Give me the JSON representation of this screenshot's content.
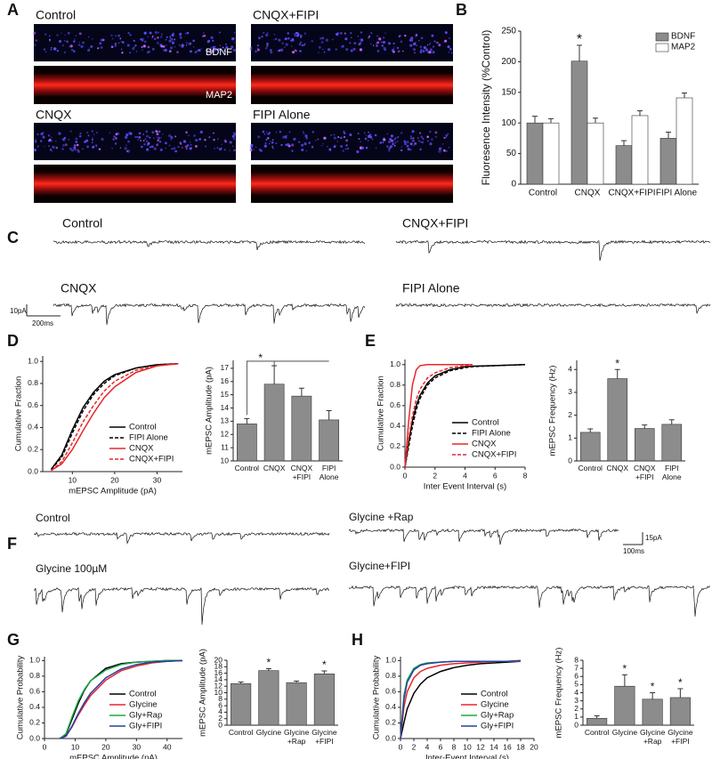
{
  "panels": [
    "A",
    "B",
    "C",
    "D",
    "E",
    "F",
    "G",
    "H"
  ],
  "micrograph_titles": [
    "Control",
    "CNQX+FIPI",
    "CNQX",
    "FIPI Alone"
  ],
  "stain_labels": [
    "BDNF",
    "MAP2"
  ],
  "traces_c": {
    "labels": [
      "Control",
      "CNQX+FIPI",
      "CNQX",
      "FIPI Alone"
    ],
    "scale_y": "10pA",
    "scale_x": "200ms"
  },
  "traces_f": {
    "labels": [
      "Control",
      "Glycine +Rap",
      "Glycine 100µM",
      "Glycine+FIPI"
    ],
    "scale_y": "15pA",
    "scale_x": "100ms"
  },
  "chart_data": [
    {
      "type": "bar",
      "ylabel": "Fluoresence Intensity (%Control)",
      "categories": [
        "Control",
        "CNQX",
        "CNQX+FIPI",
        "FIPI Alone"
      ],
      "series": [
        {
          "name": "BDNF",
          "color": "#8c8c8c",
          "values": [
            100,
            201,
            63,
            75
          ],
          "error": [
            11,
            26,
            8,
            10
          ]
        },
        {
          "name": "MAP2",
          "color": "#ffffff",
          "values": [
            100,
            100,
            112,
            141
          ],
          "error": [
            7,
            8,
            8,
            8
          ]
        }
      ],
      "ylim": [
        0,
        250
      ],
      "yticks": [
        0,
        50,
        100,
        150,
        200,
        250
      ],
      "legend": "upper right",
      "annotations": [
        {
          "text": "*",
          "category": "CNQX"
        }
      ]
    },
    {
      "type": "line",
      "xlabel": "mEPSC Amplitude (pA)",
      "ylabel": "Cumulative Fraction",
      "x": [
        5,
        7.5,
        10,
        12.5,
        15,
        17.5,
        20,
        25,
        30,
        35
      ],
      "series": [
        {
          "name": "Control",
          "color": "#000000",
          "dash": false,
          "values": [
            0.02,
            0.15,
            0.38,
            0.58,
            0.72,
            0.82,
            0.88,
            0.94,
            0.97,
            0.98
          ]
        },
        {
          "name": "FIPI Alone",
          "color": "#000000",
          "dash": true,
          "values": [
            0.02,
            0.13,
            0.35,
            0.55,
            0.7,
            0.8,
            0.87,
            0.94,
            0.97,
            0.98
          ]
        },
        {
          "name": "CNQX",
          "color": "#e8262b",
          "dash": false,
          "values": [
            0.01,
            0.07,
            0.2,
            0.37,
            0.53,
            0.67,
            0.77,
            0.9,
            0.96,
            0.98
          ]
        },
        {
          "name": "CNQX+FIPI",
          "color": "#e8262b",
          "dash": true,
          "values": [
            0.01,
            0.09,
            0.26,
            0.45,
            0.6,
            0.73,
            0.82,
            0.92,
            0.96,
            0.98
          ]
        }
      ],
      "xlim": [
        3,
        36
      ],
      "xticks": [
        10,
        20,
        30
      ],
      "ylim": [
        0,
        1.05
      ],
      "yticks": [
        {
          "value": 0,
          "label": "0.0"
        },
        0.2,
        0.4,
        0.6,
        0.8,
        {
          "value": 1,
          "label": "1.0"
        }
      ],
      "legend": "lower right"
    },
    {
      "type": "bar",
      "ylabel": "mEPSC Amplitude (pA)",
      "categories": [
        "Control",
        "CNQX",
        "CNQX +FIPI",
        "FIPI Alone"
      ],
      "values": [
        12.8,
        15.8,
        14.9,
        13.1
      ],
      "error": [
        0.4,
        1.4,
        0.6,
        0.7
      ],
      "color": "#8c8c8c",
      "ylim": [
        10,
        17.6
      ],
      "yticks": [
        10,
        11,
        12,
        13,
        14,
        15,
        16,
        17
      ],
      "annotations": [
        {
          "text": "*",
          "bracket": [
            "Control",
            "FIPI Alone"
          ]
        }
      ]
    },
    {
      "type": "line",
      "xlabel": "Inter Event Interval (s)",
      "ylabel": "Cumulative Fraction",
      "x": [
        0,
        0.25,
        0.5,
        0.75,
        1,
        1.5,
        2,
        3,
        4,
        4.5,
        6,
        8
      ],
      "series": [
        {
          "name": "Control",
          "color": "#000000",
          "dash": false,
          "values": [
            0,
            0.25,
            0.45,
            0.6,
            0.7,
            0.82,
            0.89,
            0.95,
            0.98,
            0.985,
            0.99,
            1
          ]
        },
        {
          "name": "FIPI Alone",
          "color": "#000000",
          "dash": true,
          "values": [
            0,
            0.2,
            0.4,
            0.56,
            0.67,
            0.8,
            0.87,
            0.94,
            0.97,
            0.98,
            0.99,
            1
          ]
        },
        {
          "name": "CNQX",
          "color": "#e8262b",
          "dash": false,
          "values": [
            0,
            0.45,
            0.8,
            0.95,
            0.99,
            1,
            1,
            1,
            1,
            1,
            null,
            null
          ]
        },
        {
          "name": "CNQX+FIPI",
          "color": "#e8262b",
          "dash": true,
          "values": [
            0,
            0.28,
            0.5,
            0.66,
            0.76,
            0.87,
            0.92,
            0.97,
            0.99,
            0.99,
            null,
            null
          ]
        }
      ],
      "xlim": [
        0,
        8
      ],
      "xticks": [
        0,
        2,
        4,
        6,
        8
      ],
      "ylim": [
        0,
        1.05
      ],
      "yticks": [
        {
          "value": 0,
          "label": "0.0"
        },
        0.2,
        0.4,
        0.6,
        0.8,
        {
          "value": 1,
          "label": "1.0"
        }
      ],
      "legend": "lower right"
    },
    {
      "type": "bar",
      "ylabel": "mEPSC Frequency (Hz)",
      "categories": [
        "Control",
        "CNQX",
        "CNQX +FIPI",
        "FIPI Alone"
      ],
      "values": [
        1.25,
        3.6,
        1.42,
        1.6
      ],
      "error": [
        0.15,
        0.4,
        0.15,
        0.2
      ],
      "color": "#8c8c8c",
      "ylim": [
        0,
        4.4
      ],
      "yticks": [
        0,
        1,
        2,
        3,
        4
      ],
      "annotations": [
        {
          "text": "*",
          "category": "CNQX"
        }
      ]
    },
    {
      "type": "line",
      "xlabel": "mEPSC Amplitude (pA)",
      "ylabel": "Cumulative Probability",
      "x": [
        5,
        7,
        9,
        11,
        13,
        15,
        20,
        25,
        30,
        35,
        40,
        45
      ],
      "series": [
        {
          "name": "Control",
          "color": "#000000",
          "dash": false,
          "values": [
            0,
            0.05,
            0.25,
            0.45,
            0.62,
            0.74,
            0.9,
            0.96,
            0.98,
            0.99,
            1,
            1
          ]
        },
        {
          "name": "Glycine",
          "color": "#e8262b",
          "dash": false,
          "values": [
            0,
            0.03,
            0.15,
            0.3,
            0.43,
            0.55,
            0.75,
            0.87,
            0.93,
            0.97,
            0.99,
            1
          ]
        },
        {
          "name": "Gly+Rap",
          "color": "#1aa84a",
          "dash": false,
          "values": [
            0,
            0.06,
            0.28,
            0.48,
            0.63,
            0.74,
            0.88,
            0.95,
            0.98,
            0.99,
            1,
            1
          ]
        },
        {
          "name": "Gly+FIPI",
          "color": "#2741a0",
          "dash": false,
          "values": [
            0,
            0.03,
            0.16,
            0.32,
            0.46,
            0.58,
            0.78,
            0.89,
            0.95,
            0.98,
            0.99,
            1
          ]
        }
      ],
      "xlim": [
        0,
        45
      ],
      "xticks": [
        0,
        10,
        20,
        30,
        40
      ],
      "ylim": [
        0,
        1.05
      ],
      "yticks": [
        {
          "value": 0,
          "label": "0.0"
        },
        0.2,
        0.4,
        0.6,
        0.8,
        {
          "value": 1,
          "label": "1.0"
        }
      ],
      "legend": "lower right"
    },
    {
      "type": "bar",
      "ylabel": "mEPSC Amplitude (pA)",
      "categories": [
        "Control",
        "Glycine",
        "Glycine +Rap",
        "Glycine +FIPI"
      ],
      "values": [
        12.8,
        16.8,
        13.1,
        15.8
      ],
      "error": [
        0.5,
        0.6,
        0.5,
        0.9
      ],
      "color": "#8c8c8c",
      "ylim": [
        0,
        20
      ],
      "yticks": [
        0,
        2,
        4,
        6,
        8,
        10,
        12,
        14,
        16,
        18,
        20
      ],
      "annotations": [
        {
          "text": "*",
          "category": "Glycine"
        },
        {
          "text": "*",
          "category": "Glycine +FIPI"
        }
      ]
    },
    {
      "type": "line",
      "xlabel": "Inter-Event Interval (s)",
      "ylabel": "Cumulative Probability",
      "x": [
        0,
        0.5,
        1,
        2,
        3,
        4,
        6,
        8,
        10,
        12,
        14,
        16,
        18
      ],
      "series": [
        {
          "name": "Control",
          "color": "#000000",
          "dash": false,
          "values": [
            0,
            0.2,
            0.38,
            0.58,
            0.7,
            0.78,
            0.86,
            0.91,
            0.94,
            0.96,
            0.97,
            0.98,
            0.99
          ]
        },
        {
          "name": "Glycine",
          "color": "#e8262b",
          "dash": false,
          "values": [
            0,
            0.4,
            0.6,
            0.78,
            0.86,
            0.9,
            0.94,
            0.96,
            0.97,
            0.98,
            0.99,
            0.99,
            0.99
          ]
        },
        {
          "name": "Gly+Rap",
          "color": "#1aa84a",
          "dash": false,
          "values": [
            0,
            0.55,
            0.75,
            0.9,
            0.95,
            0.97,
            0.98,
            0.99,
            0.99,
            0.99,
            0.99,
            0.99,
            1
          ]
        },
        {
          "name": "Gly+FIPI",
          "color": "#2741a0",
          "dash": false,
          "values": [
            0,
            0.5,
            0.72,
            0.88,
            0.94,
            0.96,
            0.98,
            0.99,
            0.99,
            0.99,
            0.99,
            0.99,
            1
          ]
        }
      ],
      "xlim": [
        0,
        20
      ],
      "xticks": [
        0,
        2,
        4,
        6,
        8,
        10,
        12,
        14,
        16,
        18,
        20
      ],
      "ylim": [
        0,
        1.05
      ],
      "yticks": [
        {
          "value": 0,
          "label": "0.0"
        },
        0.2,
        0.4,
        0.6,
        0.8,
        {
          "value": 1,
          "label": "1.0"
        }
      ],
      "legend": "lower right"
    },
    {
      "type": "bar",
      "ylabel": "mEPSC Frequency (Hz)",
      "categories": [
        "Control",
        "Glycine",
        "Glycine +Rap",
        "Glycine +FIPI"
      ],
      "values": [
        0.85,
        4.8,
        3.2,
        3.4
      ],
      "error": [
        0.3,
        1.4,
        0.8,
        1.1
      ],
      "color": "#8c8c8c",
      "ylim": [
        0,
        8
      ],
      "yticks": [
        0,
        1,
        2,
        3,
        4,
        5,
        6,
        7,
        8
      ],
      "annotations": [
        {
          "text": "*",
          "category": "Glycine"
        },
        {
          "text": "*",
          "category": "Glycine +Rap"
        },
        {
          "text": "*",
          "category": "Glycine +FIPI"
        }
      ]
    }
  ]
}
